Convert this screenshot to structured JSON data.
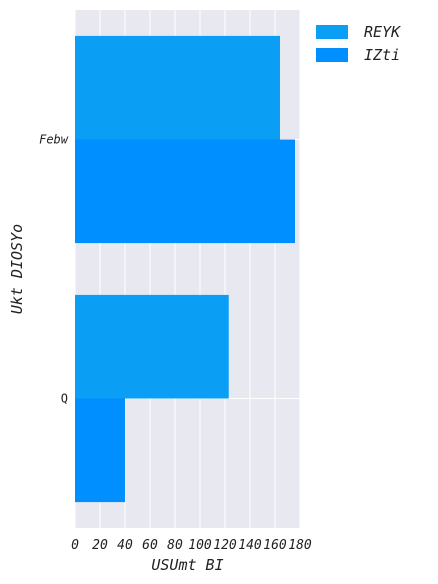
{
  "chart_data": {
    "type": "bar",
    "orientation": "horizontal",
    "categories": [
      "Febw",
      "Q"
    ],
    "category_label_styles": [
      "italic",
      "normal"
    ],
    "series": [
      {
        "name": "REYK",
        "values": [
          164,
          123
        ],
        "color": "#0a9ef5"
      },
      {
        "name": "IZti",
        "values": [
          176,
          40
        ],
        "color": "#008fff"
      }
    ],
    "xlabel": "USUmt BI",
    "ylabel": "Ukt DIOSYo",
    "xlim": [
      0,
      180
    ],
    "x_ticks": [
      0,
      20,
      40,
      60,
      80,
      100,
      120,
      140,
      160,
      180
    ],
    "grid": true,
    "legend_position": "upper-right-outside",
    "background": "#e8e8f0",
    "grid_color": "#ffffff"
  }
}
